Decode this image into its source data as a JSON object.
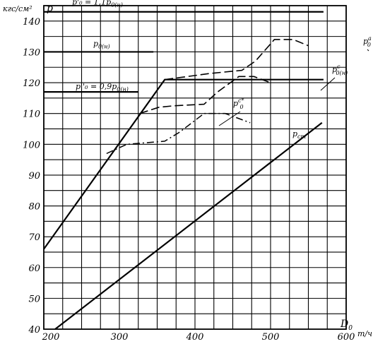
{
  "chart_data": {
    "type": "line",
    "title": "",
    "ylabel_units": "кгс/см²",
    "ylabel_symbol": "p",
    "xlabel_symbol": "D0",
    "xlabel_units": "т/ч",
    "xlim": [
      200,
      600
    ],
    "ylim": [
      40,
      145
    ],
    "x_ticks": [
      200,
      300,
      400,
      500,
      600
    ],
    "x_tick_labels": [
      "200",
      "300",
      "400",
      "500",
      "600"
    ],
    "y_ticks": [
      40,
      50,
      60,
      70,
      80,
      90,
      100,
      110,
      120,
      130,
      140
    ],
    "y_tick_labels": [
      "40",
      "50",
      "60",
      "70",
      "80",
      "90",
      "100",
      "110",
      "120",
      "130",
      "140"
    ],
    "grid": true,
    "reference_lines": [
      {
        "name": "p'0 = 1,1 p0(н)",
        "label_main": "p'₀ = 1,1p",
        "label_sub": "0(н)",
        "y": 143,
        "x": [
          200,
          570
        ]
      },
      {
        "name": "p0(н)",
        "label_main": "p",
        "label_sub": "0(н)",
        "y": 130,
        "x": [
          200,
          345
        ]
      },
      {
        "name": "p''0 = 0,9 p0(н)",
        "label_main": "p''₀ = 0,9p",
        "label_sub": "0(н)",
        "y": 117,
        "x": [
          200,
          325
        ]
      }
    ],
    "series": [
      {
        "name": "p0(н) limit",
        "style": "solid",
        "x": [
          200,
          360,
          570
        ],
        "y": [
          66,
          121,
          121
        ]
      },
      {
        "name": "p0_ст",
        "label_main": "p",
        "label_sub": "ст",
        "style": "solid",
        "x": [
          215,
          568
        ],
        "y": [
          40,
          107
        ]
      },
      {
        "name": "p0^a",
        "label_main": "p",
        "label_sub": "0",
        "label_sup": "a",
        "style": "dashed",
        "x": [
          360,
          420,
          462,
          480,
          505,
          530,
          550
        ],
        "y": [
          121,
          123,
          124,
          127,
          134,
          134,
          132
        ]
      },
      {
        "name": "p0(н)^c",
        "label_main": "p",
        "label_sub": "0(н)",
        "label_sup": "c",
        "style": "dashed",
        "x": [
          327,
          352,
          372,
          412,
          430,
          458,
          478,
          500
        ],
        "y": [
          110,
          112,
          112.5,
          113,
          117,
          122,
          122,
          120
        ]
      },
      {
        "name": "p0^c*",
        "label_main": "p",
        "label_sub": "0",
        "label_sup": "c*",
        "style": "dashdot",
        "x": [
          283,
          310,
          360,
          380,
          412,
          440,
          462,
          473
        ],
        "y": [
          97,
          100,
          101,
          104,
          110,
          110,
          108,
          107
        ]
      }
    ]
  }
}
